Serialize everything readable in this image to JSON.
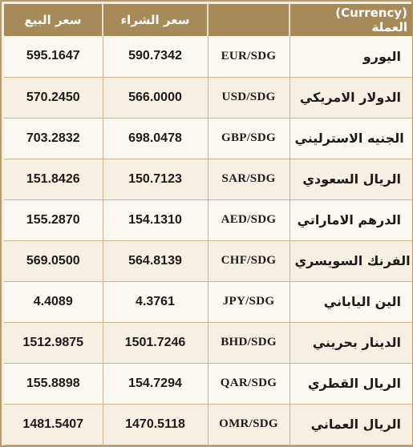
{
  "header": {
    "sell": "سعر البيع",
    "buy": "سعر الشراء",
    "currency_ar": "العملة",
    "currency_en": "(Currency)"
  },
  "rows": [
    {
      "sell": "595.1647",
      "buy": "590.7342",
      "code": "EUR/SDG",
      "name": "اليورو"
    },
    {
      "sell": "570.2450",
      "buy": "566.0000",
      "code": "USD/SDG",
      "name": "الدولار الامريكي"
    },
    {
      "sell": "703.2832",
      "buy": "698.0478",
      "code": "GBP/SDG",
      "name": "الجنيه الاسترليني"
    },
    {
      "sell": "151.8426",
      "buy": "150.7123",
      "code": "SAR/SDG",
      "name": "الريال السعودي"
    },
    {
      "sell": "155.2870",
      "buy": "154.1310",
      "code": "AED/SDG",
      "name": "الدرهم الاماراتي"
    },
    {
      "sell": "569.0500",
      "buy": "564.8139",
      "code": "CHF/SDG",
      "name": "الفرنك السويسري"
    },
    {
      "sell": "4.4089",
      "buy": "4.3761",
      "code": "JPY/SDG",
      "name": "الين الياباني"
    },
    {
      "sell": "1512.9875",
      "buy": "1501.7246",
      "code": "BHD/SDG",
      "name": "الدينار بحريني"
    },
    {
      "sell": "155.8898",
      "buy": "154.7294",
      "code": "QAR/SDG",
      "name": "الريال القطري"
    },
    {
      "sell": "1481.5407",
      "buy": "1470.5118",
      "code": "OMR/SDG",
      "name": "الريال العماني"
    }
  ],
  "colors": {
    "header_bg": "#a68a5a",
    "frame": "#b89a6c",
    "row_light": "#fbf8f1",
    "row_dark": "#f6f0e3"
  }
}
